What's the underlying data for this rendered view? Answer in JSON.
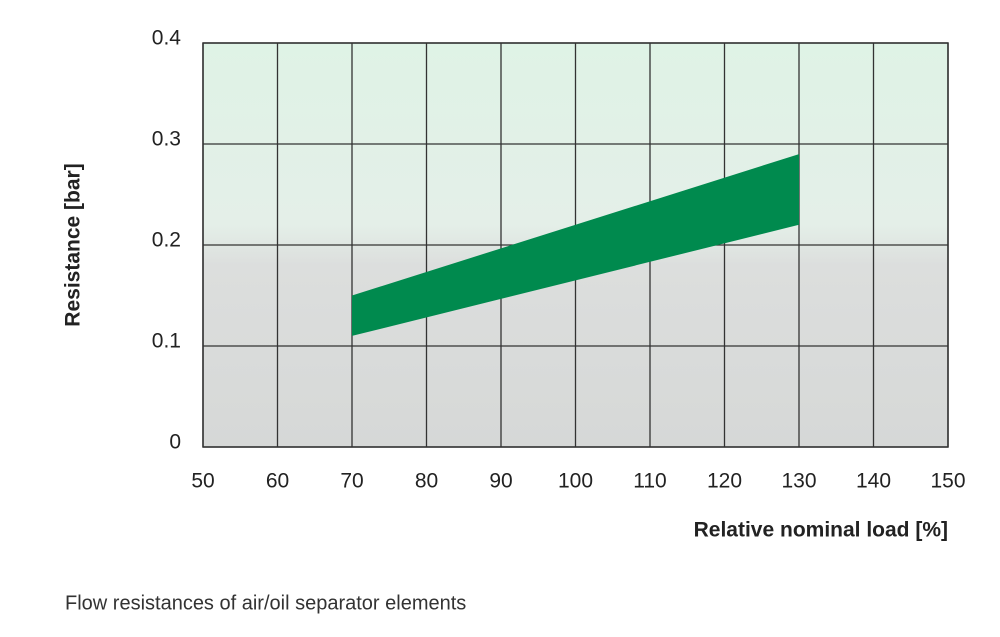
{
  "chart_data": {
    "type": "band",
    "caption": "Flow resistances of air/oil separator elements",
    "xlabel": "Relative nominal load [%]",
    "ylabel": "Resistance [bar]",
    "x": [
      70,
      130
    ],
    "lower": [
      0.11,
      0.22
    ],
    "upper": [
      0.15,
      0.29
    ],
    "color": "#008a4e",
    "xlim": [
      50,
      150
    ],
    "xticks": [
      50,
      60,
      70,
      80,
      90,
      100,
      110,
      120,
      130,
      140,
      150
    ],
    "ylim": [
      0,
      0.4
    ],
    "yticks": [
      0,
      0.1,
      0.2,
      0.3,
      0.4
    ],
    "grid": true
  }
}
